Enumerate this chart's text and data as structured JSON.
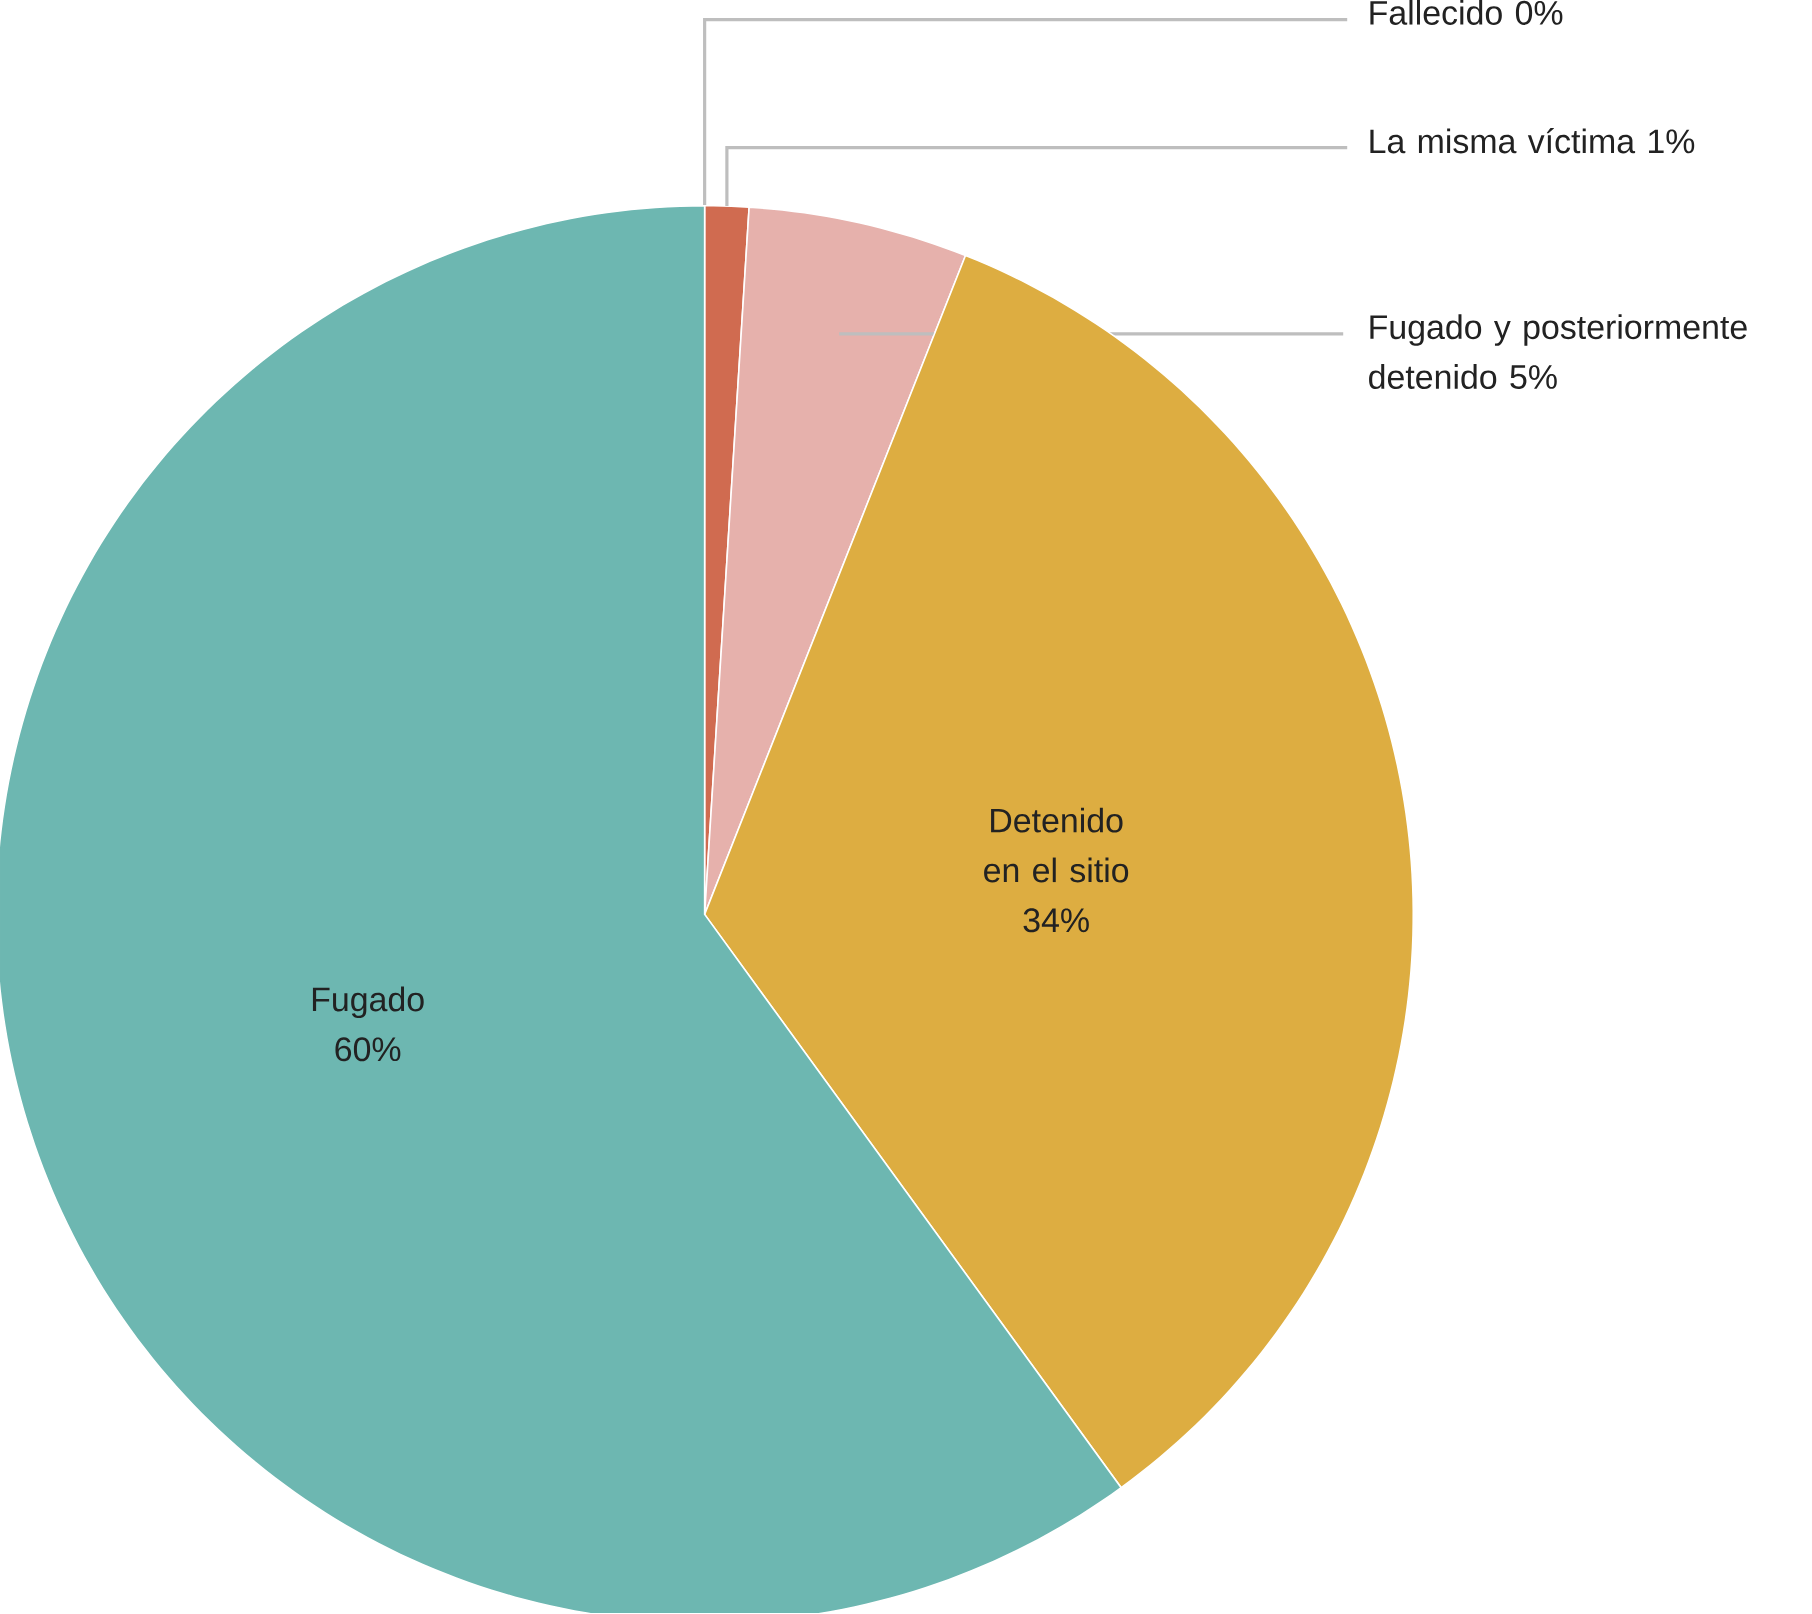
{
  "chart_data": {
    "type": "pie",
    "categories": [
      "Fallecido",
      "La misma víctima",
      "Fugado y posteriormente detenido",
      "Detenido en el sitio",
      "Fugado"
    ],
    "values": [
      0,
      1,
      5,
      34,
      60
    ],
    "value_labels": [
      "0%",
      "1%",
      "5%",
      "34%",
      "60%"
    ],
    "colors": [
      "#b5483a",
      "#d06b50",
      "#e6b1ac",
      "#ddad41",
      "#6db7b1"
    ]
  }
}
